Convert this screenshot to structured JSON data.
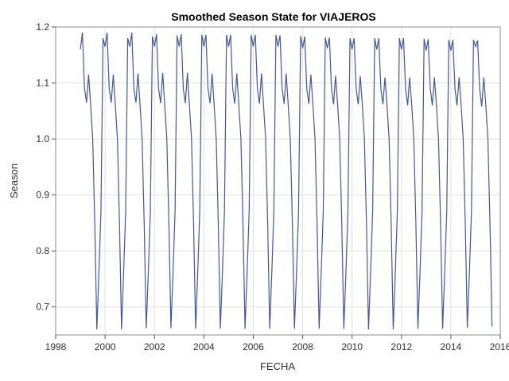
{
  "chart_data": {
    "type": "line",
    "title": "Smoothed Season State for VIAJEROS",
    "xlabel": "FECHA",
    "ylabel": "Season",
    "xlim": [
      1998,
      2016
    ],
    "ylim": [
      0.65,
      1.2
    ],
    "xticks": [
      "1998",
      "2000",
      "2002",
      "2004",
      "2006",
      "2008",
      "2010",
      "2012",
      "2014",
      "2016"
    ],
    "yticks": [
      "0.7",
      "0.8",
      "0.9",
      "1.0",
      "1.1",
      "1.2"
    ],
    "grid": true,
    "line_color": "#445694",
    "start_year": 1999,
    "seasonal_pattern": [
      1.16,
      1.19,
      1.09,
      1.065,
      1.115,
      1.06,
      1.0,
      0.85,
      0.66,
      0.76,
      0.87,
      1.18
    ],
    "series": [
      {
        "name": "Season",
        "values": [
          1.16,
          1.19,
          1.09,
          1.065,
          1.115,
          1.06,
          1.0,
          0.85,
          0.66,
          0.76,
          0.87,
          1.18,
          1.165,
          1.19,
          1.09,
          1.065,
          1.115,
          1.06,
          1.0,
          0.85,
          0.66,
          0.76,
          0.87,
          1.18,
          1.165,
          1.19,
          1.09,
          1.065,
          1.117,
          1.06,
          1.0,
          0.85,
          0.662,
          0.76,
          0.87,
          1.183,
          1.165,
          1.187,
          1.09,
          1.064,
          1.118,
          1.06,
          1.0,
          0.85,
          0.662,
          0.76,
          0.87,
          1.185,
          1.165,
          1.187,
          1.09,
          1.064,
          1.118,
          1.06,
          1.0,
          0.85,
          0.661,
          0.76,
          0.87,
          1.186,
          1.165,
          1.186,
          1.09,
          1.064,
          1.117,
          1.06,
          1.0,
          0.85,
          0.661,
          0.76,
          0.87,
          1.186,
          1.165,
          1.186,
          1.09,
          1.063,
          1.117,
          1.06,
          1.0,
          0.85,
          0.661,
          0.76,
          0.87,
          1.186,
          1.165,
          1.186,
          1.09,
          1.063,
          1.117,
          1.06,
          1.0,
          0.85,
          0.661,
          0.76,
          0.87,
          1.186,
          1.165,
          1.185,
          1.09,
          1.063,
          1.117,
          1.06,
          1.0,
          0.85,
          0.661,
          0.76,
          0.87,
          1.184,
          1.162,
          1.183,
          1.09,
          1.063,
          1.115,
          1.06,
          1.0,
          0.85,
          0.661,
          0.76,
          0.87,
          1.181,
          1.162,
          1.181,
          1.09,
          1.062,
          1.113,
          1.06,
          1.0,
          0.85,
          0.661,
          0.76,
          0.87,
          1.18,
          1.16,
          1.18,
          1.09,
          1.062,
          1.112,
          1.06,
          1.0,
          0.85,
          0.66,
          0.76,
          0.87,
          1.18,
          1.16,
          1.18,
          1.09,
          1.062,
          1.11,
          1.06,
          1.0,
          0.85,
          0.66,
          0.76,
          0.87,
          1.18,
          1.16,
          1.18,
          1.09,
          1.06,
          1.11,
          1.06,
          1.0,
          0.85,
          0.661,
          0.76,
          0.87,
          1.179,
          1.158,
          1.178,
          1.09,
          1.06,
          1.11,
          1.06,
          1.0,
          0.85,
          0.661,
          0.76,
          0.87,
          1.177,
          1.158,
          1.177,
          1.09,
          1.06,
          1.11,
          1.06,
          1.0,
          0.85,
          0.663,
          0.76,
          0.87,
          1.177,
          1.165,
          1.176,
          1.09,
          1.058,
          1.11,
          1.06,
          1.0,
          0.85,
          0.665
        ]
      }
    ]
  }
}
